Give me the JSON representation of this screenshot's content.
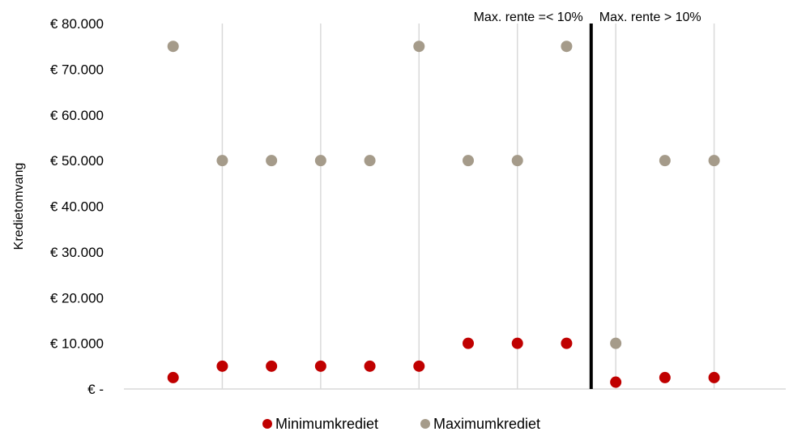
{
  "chart_data": {
    "type": "scatter",
    "ylabel": "Kredietomvang",
    "ylim": [
      0,
      80000
    ],
    "yticks": [
      {
        "value": 0,
        "label": "€ -"
      },
      {
        "value": 10000,
        "label": "€ 10.000"
      },
      {
        "value": 20000,
        "label": "€ 20.000"
      },
      {
        "value": 30000,
        "label": "€ 30.000"
      },
      {
        "value": 40000,
        "label": "€ 40.000"
      },
      {
        "value": 50000,
        "label": "€ 50.000"
      },
      {
        "value": 60000,
        "label": "€ 60.000"
      },
      {
        "value": 70000,
        "label": "€ 70.000"
      },
      {
        "value": 80000,
        "label": "€ 80.000"
      }
    ],
    "x": [
      1,
      2,
      3,
      4,
      5,
      6,
      7,
      8,
      9,
      10,
      11,
      12
    ],
    "xlim": [
      0,
      14
    ],
    "grid": "vertical",
    "series": [
      {
        "name": "Minimumkrediet",
        "color": "#c00000",
        "values": [
          2500,
          5000,
          5000,
          5000,
          5000,
          5000,
          10000,
          10000,
          10000,
          1500,
          2500,
          2500
        ]
      },
      {
        "name": "Maximumkrediet",
        "color": "#a59b8a",
        "values": [
          75000,
          50000,
          50000,
          50000,
          50000,
          75000,
          50000,
          50000,
          75000,
          10000,
          50000,
          50000
        ]
      }
    ],
    "divider_x": 9.5,
    "annotations": [
      {
        "text": "Max. rente =< 10%",
        "side": "left"
      },
      {
        "text": "Max. rente > 10%",
        "side": "right"
      }
    ],
    "legend": "bottom"
  }
}
